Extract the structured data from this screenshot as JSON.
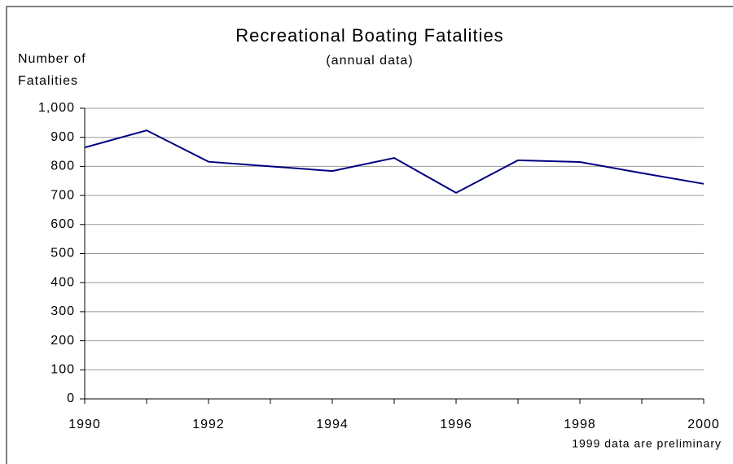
{
  "chart_data": {
    "type": "line",
    "title": "Recreational Boating Fatalities",
    "subtitle": "(annual data)",
    "ylabel": [
      "Number of",
      "Fatalities"
    ],
    "annotation": "1999 data are preliminary",
    "x": [
      1990,
      1991,
      1992,
      1993,
      1994,
      1995,
      1996,
      1997,
      1998,
      1999,
      2000
    ],
    "series": [
      {
        "name": "Fatalities",
        "color": "#000080",
        "values": [
          865,
          924,
          816,
          800,
          784,
          829,
          709,
          821,
          815,
          777,
          740
        ]
      }
    ],
    "xlim": [
      1990,
      2000
    ],
    "xticks": [
      1990,
      1992,
      1994,
      1996,
      1998,
      2000
    ],
    "ylim": [
      0,
      1000
    ],
    "yticks": [
      0,
      100,
      200,
      300,
      400,
      500,
      600,
      700,
      800,
      900,
      {
        "value": 1000,
        "label": "1,000"
      }
    ],
    "grid": true
  }
}
